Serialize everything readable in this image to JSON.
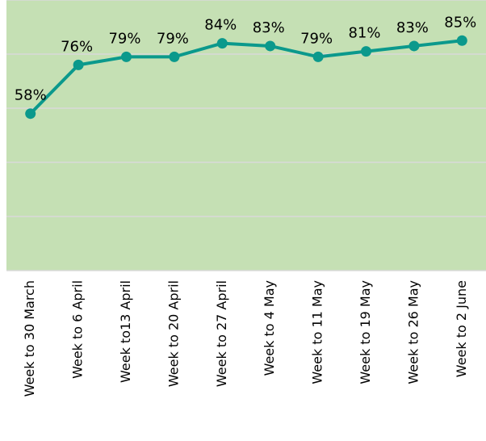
{
  "chart_data": {
    "type": "line",
    "categories": [
      "Week to 30 March",
      "Week to 6 April",
      "Week to13 April",
      "Week to 20 April",
      "Week to 27 April",
      "Week to 4 May",
      "Week to 11 May",
      "Week to 19 May",
      "Week to 26 May",
      "Week to 2 June"
    ],
    "values": [
      58,
      76,
      79,
      79,
      84,
      83,
      79,
      81,
      83,
      85
    ],
    "value_labels": [
      "58%",
      "76%",
      "79%",
      "79%",
      "84%",
      "83%",
      "79%",
      "81%",
      "83%",
      "85%"
    ],
    "color": "#0b998c",
    "ylim": [
      0,
      100
    ],
    "yticks": [
      0,
      20,
      40,
      60,
      80,
      100
    ],
    "grid": true
  }
}
